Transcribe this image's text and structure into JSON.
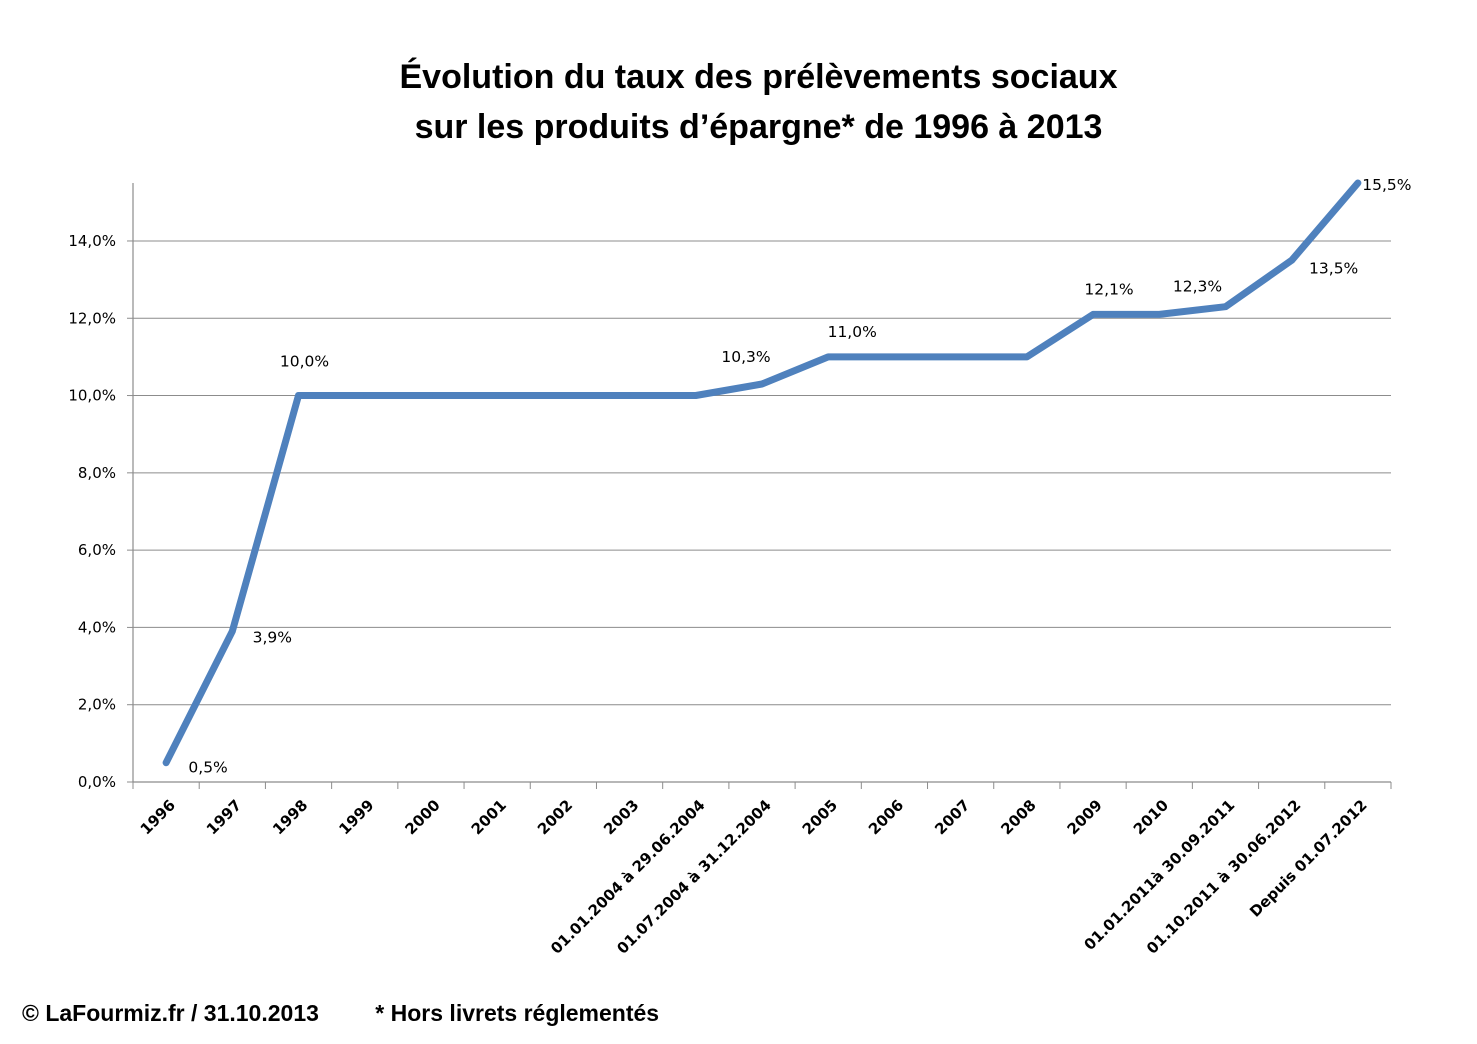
{
  "chart_data": {
    "type": "line",
    "title_lines": [
      "Évolution du taux des prélèvements sociaux",
      "sur les produits d’épargne* de 1996 à 2013"
    ],
    "xlabel": "",
    "ylabel": "",
    "categories": [
      "1996",
      "1997",
      "1998",
      "1999",
      "2000",
      "2001",
      "2002",
      "2003",
      "01.01.2004 à 29.06.2004",
      "01.07.2004 à 31.12.2004",
      "2005",
      "2006",
      "2007",
      "2008",
      "2009",
      "2010",
      "01.01.2011à 30.09.2011",
      "01.10.2011 à 30.06.2012",
      "Depuis 01.07.2012"
    ],
    "series": [
      {
        "values": [
          0.5,
          3.9,
          10.0,
          10.0,
          10.0,
          10.0,
          10.0,
          10.0,
          10.0,
          10.3,
          11.0,
          11.0,
          11.0,
          11.0,
          12.1,
          12.1,
          12.3,
          13.5,
          15.5
        ],
        "color": "#4f81bd"
      }
    ],
    "data_labels": [
      {
        "index": 0,
        "text": "0,5%"
      },
      {
        "index": 1,
        "text": "3,9%"
      },
      {
        "index": 2,
        "text": "10,0%"
      },
      {
        "index": 9,
        "text": "10,3%"
      },
      {
        "index": 10,
        "text": "11,0%"
      },
      {
        "index": 14,
        "text": "12,1%"
      },
      {
        "index": 16,
        "text": "12,3%"
      },
      {
        "index": 17,
        "text": "13,5%"
      },
      {
        "index": 18,
        "text": "15,5%"
      }
    ],
    "yticks": [
      0,
      2,
      4,
      6,
      8,
      10,
      12,
      14
    ],
    "ytick_labels": [
      "0,0%",
      "2,0%",
      "4,0%",
      "6,0%",
      "8,0%",
      "10,0%",
      "12,0%",
      "14,0%"
    ],
    "ylim": [
      0,
      15.5
    ],
    "grid": true,
    "legend": "none"
  },
  "footer": {
    "copyright": "© LaFourmiz.fr / 31.10.2013",
    "note": "* Hors livrets réglementés"
  }
}
